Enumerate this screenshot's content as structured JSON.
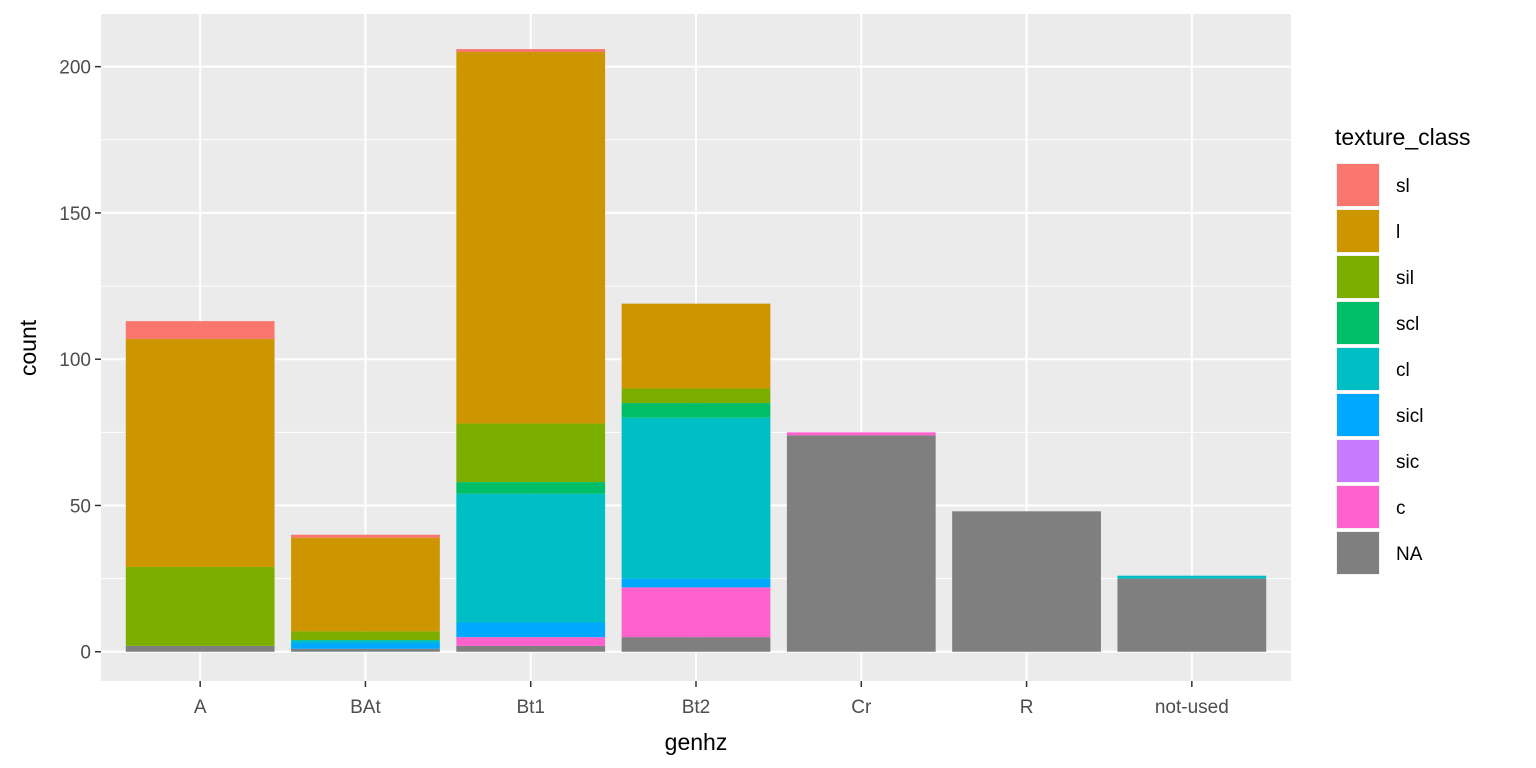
{
  "chart_data": {
    "type": "bar",
    "stacked": true,
    "xlabel": "genhz",
    "ylabel": "count",
    "categories": [
      "A",
      "BAt",
      "Bt1",
      "Bt2",
      "Cr",
      "R",
      "not-used"
    ],
    "ylim": [
      -10,
      218
    ],
    "yticks": [
      0,
      50,
      100,
      150,
      200
    ],
    "grid": true,
    "legend": {
      "title": "texture_class",
      "position": "right"
    },
    "series": [
      {
        "name": "sl",
        "color": "#F8766D",
        "values": [
          6,
          1,
          1,
          0,
          0,
          0,
          0
        ]
      },
      {
        "name": "l",
        "color": "#CD9600",
        "values": [
          78,
          32,
          127,
          29,
          0,
          0,
          0
        ]
      },
      {
        "name": "sil",
        "color": "#7CAE00",
        "values": [
          27,
          3,
          20,
          5,
          0,
          0,
          0
        ]
      },
      {
        "name": "scl",
        "color": "#00BE67",
        "values": [
          0,
          0,
          4,
          5,
          0,
          0,
          0
        ]
      },
      {
        "name": "cl",
        "color": "#00BFC4",
        "values": [
          0,
          1,
          44,
          55,
          0,
          0,
          1
        ]
      },
      {
        "name": "sicl",
        "color": "#00A9FF",
        "values": [
          0,
          2,
          5,
          3,
          0,
          0,
          0
        ]
      },
      {
        "name": "sic",
        "color": "#C77CFF",
        "values": [
          0,
          0,
          0,
          0,
          0,
          0,
          0
        ]
      },
      {
        "name": "c",
        "color": "#FF61CC",
        "values": [
          0,
          0,
          3,
          17,
          1,
          0,
          0
        ]
      },
      {
        "name": "NA",
        "color": "#7F7F7F",
        "values": [
          2,
          1,
          2,
          5,
          74,
          48,
          25
        ]
      }
    ]
  }
}
